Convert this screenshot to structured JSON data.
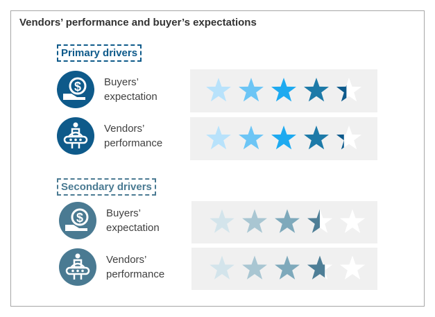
{
  "title": "Vendors’ performance and buyer’s expectations",
  "chart_data": {
    "type": "star-rating",
    "max": 5,
    "groups": [
      {
        "label": "Primary drivers",
        "color": "#0e5a8a",
        "star_colors": [
          "#b8e2fb",
          "#6cc5f5",
          "#1eaaf0",
          "#1d7aa8",
          "#0d5a8c"
        ],
        "rows": [
          {
            "icon": "money-hand-icon",
            "line1": "Buyers’",
            "line2": "expectation",
            "value": 4.4
          },
          {
            "icon": "person-conveyor-icon",
            "line1": "Vendors’",
            "line2": "performance",
            "value": 4.3
          }
        ]
      },
      {
        "label": "Secondary drivers",
        "color": "#4a7a92",
        "star_colors": [
          "#d3e4eb",
          "#a9c6d2",
          "#7ea9bb",
          "#4e7e96",
          "#4e7e96"
        ],
        "rows": [
          {
            "icon": "money-hand-icon",
            "line1": "Buyers’",
            "line2": "expectation",
            "value": 3.5
          },
          {
            "icon": "person-conveyor-icon",
            "line1": "Vendors’",
            "line2": "performance",
            "value": 3.7
          }
        ]
      }
    ]
  }
}
